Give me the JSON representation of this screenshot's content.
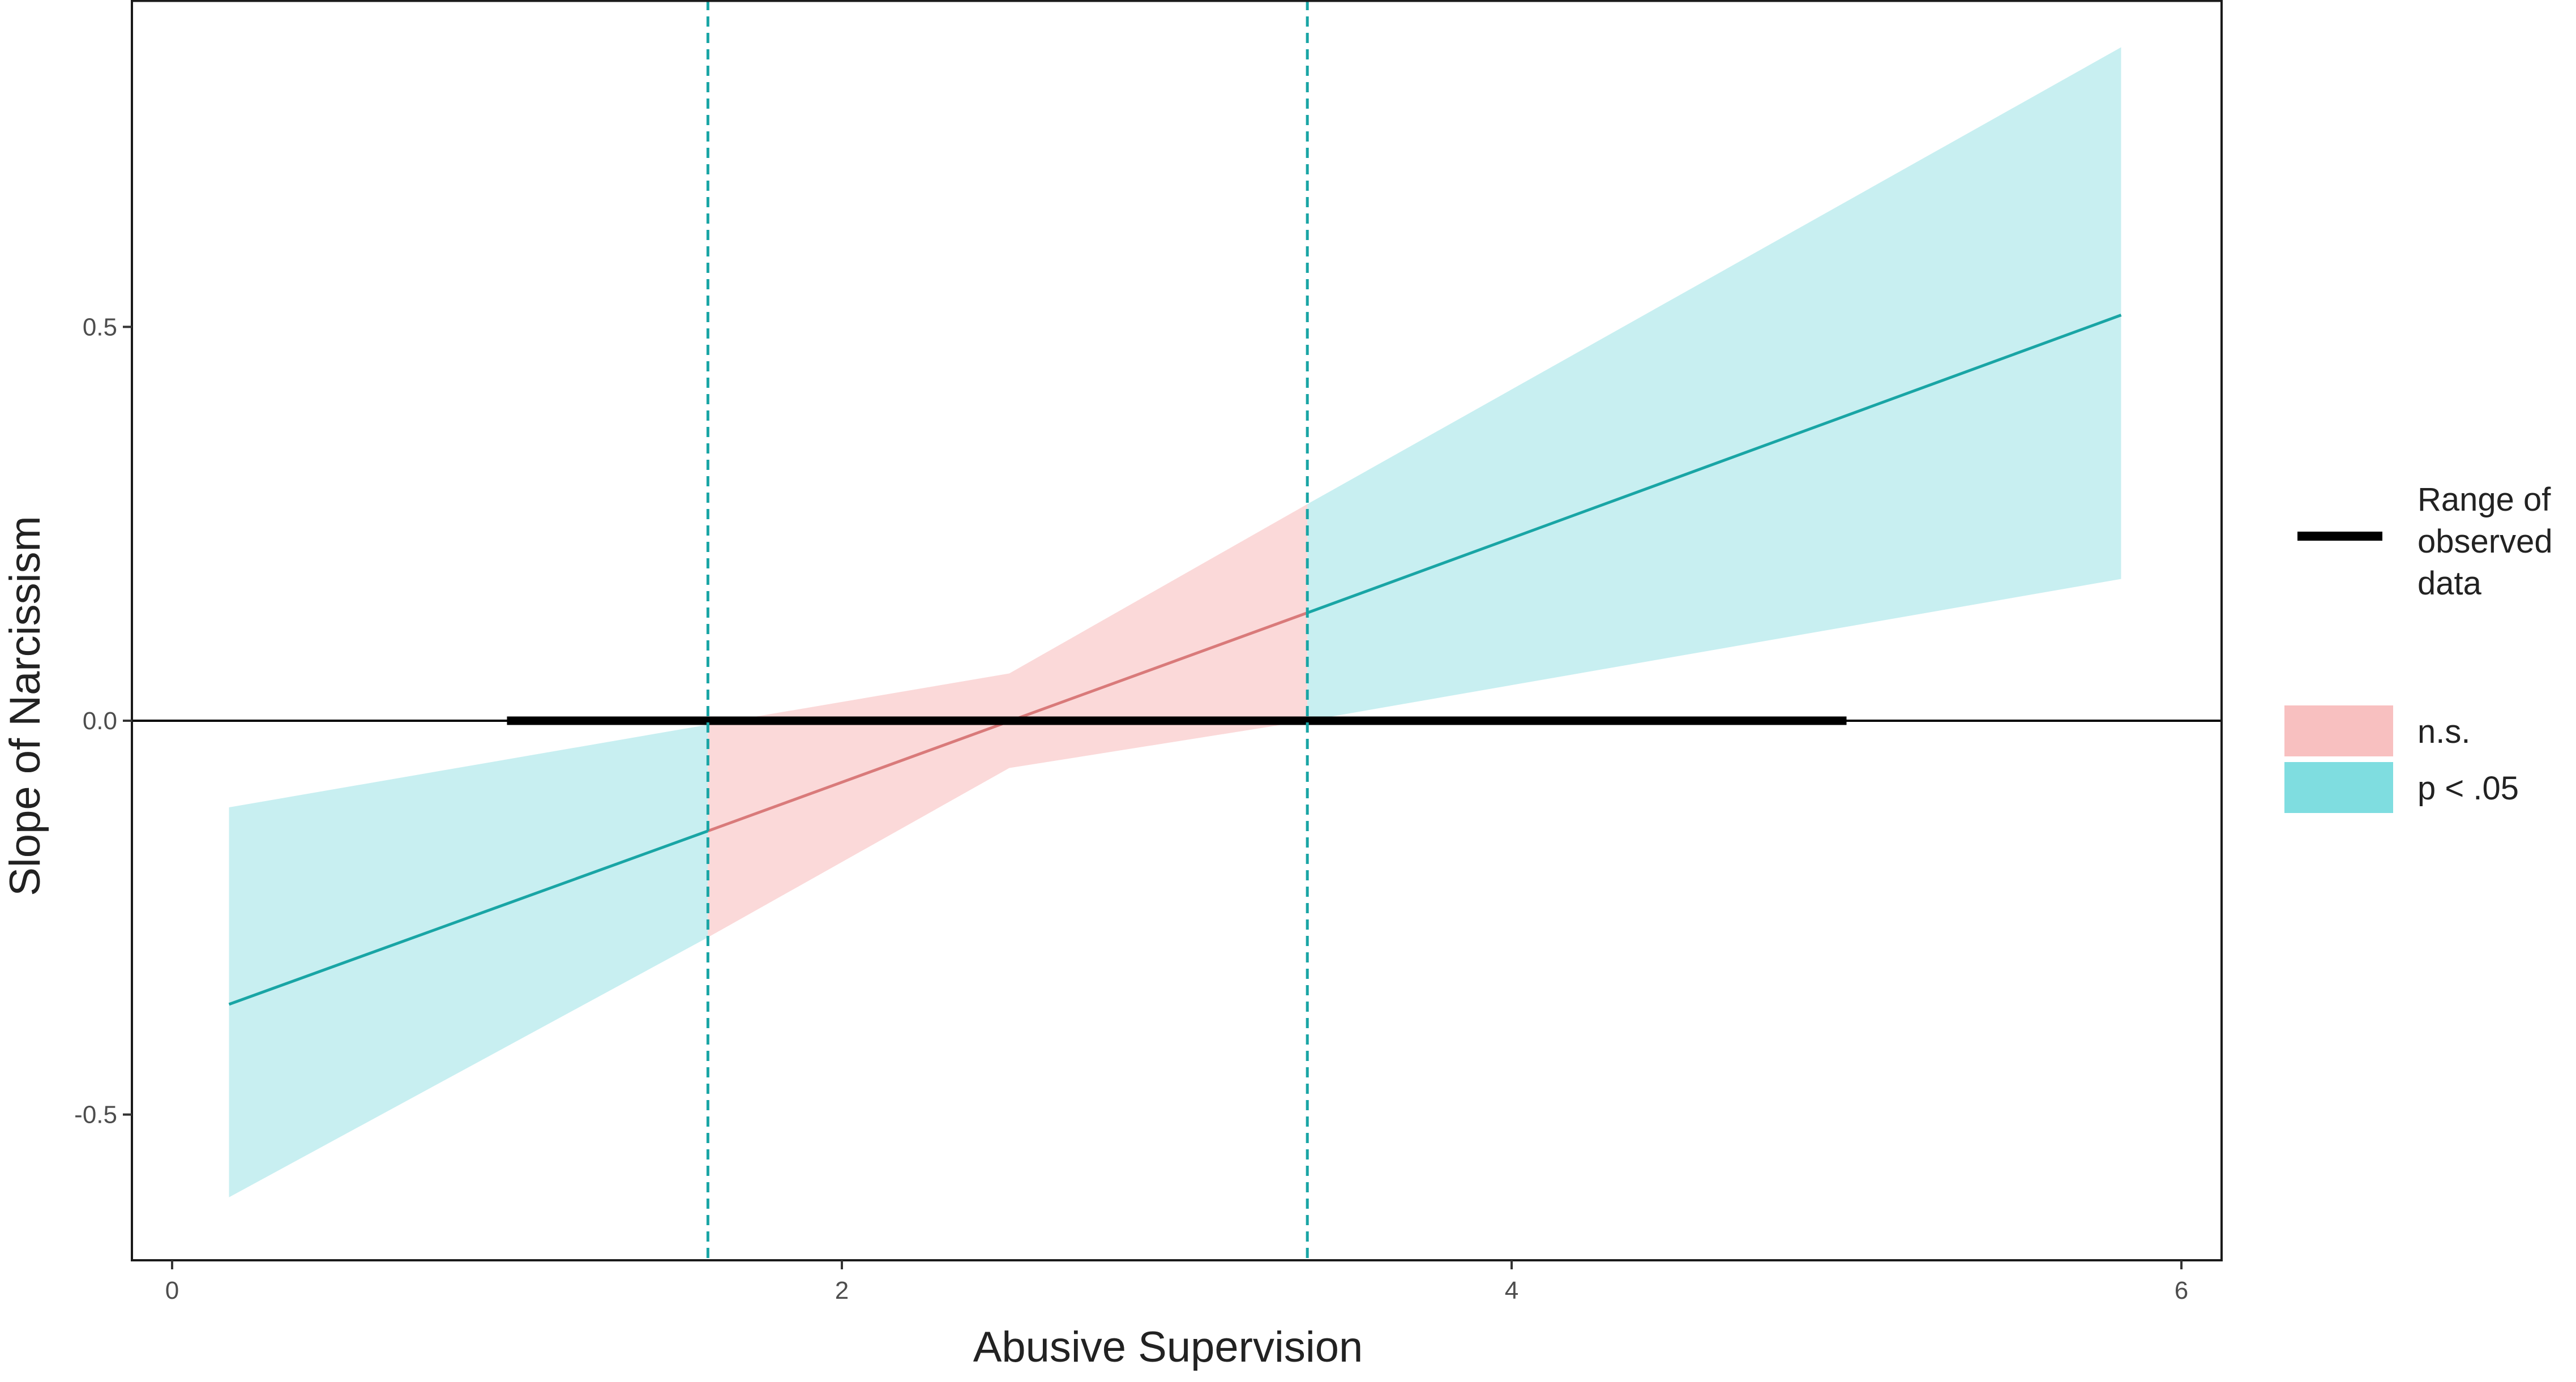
{
  "chart_data": {
    "type": "line",
    "xlabel": "Abusive Supervision",
    "ylabel": "Slope of Narcissism",
    "xlim": [
      -0.12,
      6.12
    ],
    "ylim": [
      -0.685,
      0.915
    ],
    "x_ticks": [
      0,
      2,
      4,
      6
    ],
    "x_tick_labels": [
      "0",
      "2",
      "4",
      "6"
    ],
    "y_ticks": [
      -0.5,
      0.0,
      0.5
    ],
    "y_tick_labels": [
      "-0.5",
      "0.0",
      "0.5"
    ],
    "grid": false,
    "legend_position": "right",
    "slope_line": {
      "x": [
        0.17,
        1.6,
        3.39,
        5.82
      ],
      "y": [
        -0.36,
        -0.14,
        0.137,
        0.515
      ]
    },
    "confidence_band": {
      "x": [
        0.17,
        1.6,
        2.5,
        3.39,
        5.82
      ],
      "lower": [
        -0.605,
        -0.275,
        -0.06,
        0.0,
        0.18
      ],
      "upper": [
        -0.11,
        -0.005,
        0.06,
        0.275,
        0.855
      ]
    },
    "significance_regions": [
      {
        "from": 0.17,
        "to": 1.6,
        "label": "p < .05"
      },
      {
        "from": 1.6,
        "to": 3.39,
        "label": "n.s."
      },
      {
        "from": 3.39,
        "to": 5.82,
        "label": "p < .05"
      }
    ],
    "johnson_neyman_points": [
      1.6,
      3.39
    ],
    "zero_reference_line": 0.0,
    "observed_range": {
      "x": [
        1.0,
        5.0
      ],
      "y": 0.0
    },
    "legend": {
      "range_line_lines": [
        "Range of",
        "observed",
        "data"
      ],
      "items": [
        {
          "label": "n.s.",
          "color": "#f8c0c0"
        },
        {
          "label": "p < .05",
          "color": "#7fdde0"
        }
      ]
    },
    "colors": {
      "significant_fill": "#c8eff1",
      "nonsignificant_fill": "#fbd9d9",
      "significant_line": "#19a5a5",
      "nonsignificant_line": "#d97a7a",
      "jn_line": "#19a5a5",
      "range_line": "#000000"
    }
  }
}
